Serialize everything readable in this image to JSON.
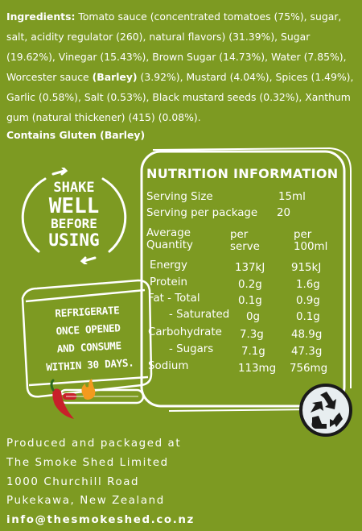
{
  "ingredients": {
    "label": "Ingredients:",
    "text_1": " Tomato sauce (concentrated tomatoes (75%), sugar, salt, acidity regulator (260), natural flavors)  (31.39%), Sugar (19.62%), Vinegar (15.43%), Brown Sugar (14.73%), Water (7.85%), Worcester sauce ",
    "allergen": "(Barley)",
    "text_2": " (3.92%), Mustard (4.04%), Spices (1.49%), Garlic (0.58%), Salt (0.53%), Black mustard seeds (0.32%), Xanthum gum (natural thickener) (415) (0.08%).",
    "contains": "Contains Gluten (Barley)"
  },
  "shake_badge": {
    "line1": "SHAKE",
    "line2": "WELL",
    "line3": "BEFORE",
    "line4": "USING"
  },
  "nutrition": {
    "title": "NUTRITION INFORMATION",
    "serving_size_label": "Serving Size",
    "serving_size_value": "15ml",
    "servings_label": "Serving per package",
    "servings_value": "20",
    "avg_qty_line1": "Average",
    "avg_qty_line2": "Quantity",
    "col1_line1": "per",
    "col1_line2": "serve",
    "col2_line1": "per",
    "col2_line2": "100ml",
    "rows": [
      {
        "label": "Energy",
        "serve": "137kJ",
        "per100": "915kJ"
      },
      {
        "label": "Protein",
        "serve": "0.2g",
        "per100": "1.6g"
      },
      {
        "label": "Fat - Total",
        "serve": "0.1g",
        "per100": "0.9g"
      },
      {
        "label": "- Saturated",
        "serve": "0g",
        "per100": "0.1g"
      },
      {
        "label": "Carbohydrate",
        "serve": "7.3g",
        "per100": "48.9g"
      },
      {
        "label": "- Sugars",
        "serve": "7.1g",
        "per100": "47.3g"
      },
      {
        "label": "Sodium",
        "serve": "113mg",
        "per100": "756mg"
      }
    ]
  },
  "fridge": {
    "line1": "REFRIGERATE",
    "line2": "ONCE OPENED",
    "line3": "AND CONSUME",
    "line4": "WITHIN 30 DAYS."
  },
  "heat_meter_fill": 0.18,
  "address": {
    "line1": "Produced and packaged at",
    "line2": "The Smoke Shed Limited",
    "line3": "1000 Churchill Road",
    "line4": "Pukekawa, New Zealand",
    "email": "info@thesmokeshed.co.nz"
  },
  "colors": {
    "background": "#7d9a22",
    "text": "#ffffff",
    "chili": "#c8202a",
    "flame": "#f39a1e",
    "recycle_bg": "#e8eef0"
  },
  "icons": {
    "recycle": "recycle-icon",
    "chili": "chili-icon",
    "flame": "flame-icon"
  }
}
